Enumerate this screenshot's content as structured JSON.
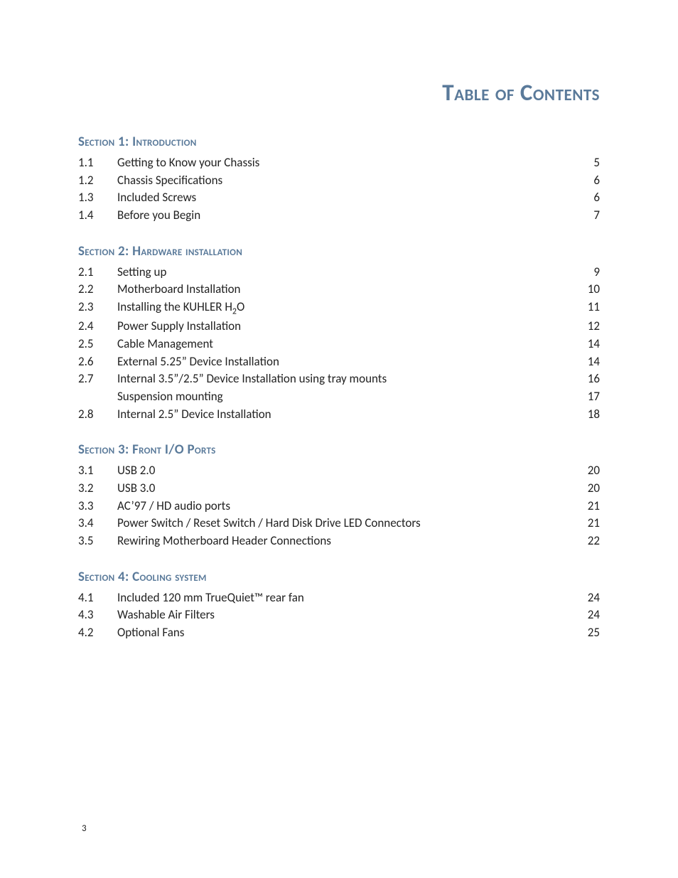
{
  "page": {
    "title": "Table of Contents",
    "number": "3",
    "colors": {
      "heading": "#5a7a9a",
      "text": "#222222",
      "background": "#ffffff"
    },
    "typography": {
      "title_fontsize": 33,
      "heading_fontsize": 19,
      "body_fontsize": 17,
      "pagenum_fontsize": 13,
      "font_family": "Calibri",
      "title_weight": 700,
      "heading_weight": 700,
      "body_weight": 400
    }
  },
  "sections": [
    {
      "heading": "Section 1: Introduction",
      "entries": [
        {
          "num": "1.1",
          "title": "Getting to Know your Chassis",
          "page": "5"
        },
        {
          "num": "1.2",
          "title": "Chassis Specifications",
          "page": "6"
        },
        {
          "num": "1.3",
          "title": "Included Screws",
          "page": "6"
        },
        {
          "num": "1.4",
          "title": "Before you Begin",
          "page": "7"
        }
      ]
    },
    {
      "heading": "Section 2: Hardware installation",
      "entries": [
        {
          "num": "2.1",
          "title": "Setting up",
          "page": "9"
        },
        {
          "num": "2.2",
          "title": "Motherboard Installation",
          "page": "10"
        },
        {
          "num": "2.3",
          "title_html": "Installing the KUHLER H<sub>2</sub>O",
          "title": "Installing the KUHLER H2O",
          "page": "11"
        },
        {
          "num": "2.4",
          "title": "Power Supply Installation",
          "page": "12"
        },
        {
          "num": "2.5",
          "title": "Cable Management",
          "page": "14"
        },
        {
          "num": "2.6",
          "title": "External 5.25” Device Installation",
          "page": "14"
        },
        {
          "num": "2.7",
          "title": "Internal 3.5”/2.5” Device Installation using tray mounts",
          "page": "16"
        },
        {
          "num": "",
          "title": "Suspension mounting",
          "page": "17"
        },
        {
          "num": "2.8",
          "title": "Internal 2.5” Device Installation",
          "page": "18"
        }
      ]
    },
    {
      "heading": "Section 3: Front I/O Ports",
      "entries": [
        {
          "num": "3.1",
          "title": "USB 2.0",
          "page": "20"
        },
        {
          "num": "3.2",
          "title": "USB 3.0",
          "page": "20"
        },
        {
          "num": "3.3",
          "title": "AC’97 / HD audio ports",
          "page": "21"
        },
        {
          "num": "3.4",
          "title": "Power Switch / Reset Switch / Hard Disk Drive LED Connectors",
          "page": "21"
        },
        {
          "num": "3.5",
          "title": "Rewiring Motherboard Header Connections",
          "page": "22"
        }
      ]
    },
    {
      "heading": "Section 4: Cooling system",
      "entries": [
        {
          "num": "4.1",
          "title": "Included 120 mm TrueQuiet™ rear fan",
          "page": "24"
        },
        {
          "num": "4.3",
          "title": "Washable Air Filters",
          "page": "24"
        },
        {
          "num": "4.2",
          "title": "Optional Fans",
          "page": "25"
        }
      ]
    }
  ]
}
